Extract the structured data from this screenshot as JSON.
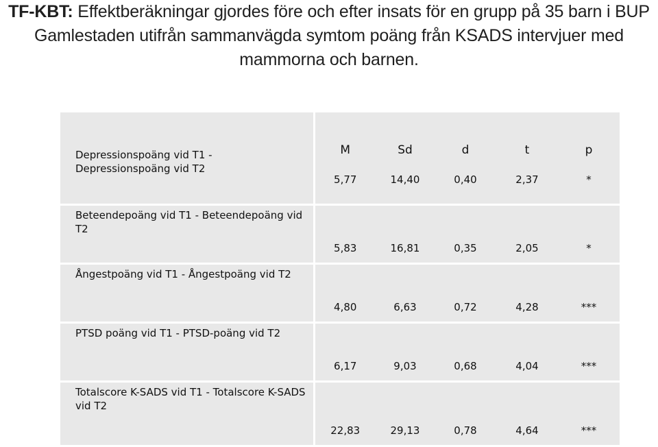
{
  "heading": {
    "lead": "TF-KBT:",
    "text": " Effektberäkningar gjordes före och efter insats för en grupp på 35 barn i BUP Gamlestaden utifrån sammanvägda symtom poäng från KSADS intervjuer med mammorna och barnen."
  },
  "table": {
    "headers": [
      "M",
      "Sd",
      "d",
      "t",
      "p"
    ],
    "rows": [
      {
        "label": "Depressionspoäng vid T1 - Depressionspoäng vid T2",
        "values": [
          "5,77",
          "14,40",
          "0,40",
          "2,37",
          "*"
        ]
      },
      {
        "label": "Beteendepoäng vid T1 - Beteendepoäng vid T2",
        "values": [
          "5,83",
          "16,81",
          "0,35",
          "2,05",
          "*"
        ]
      },
      {
        "label": "Ångestpoäng vid T1 - Ångestpoäng vid T2",
        "values": [
          "4,80",
          "6,63",
          "0,72",
          "4,28",
          "***"
        ]
      },
      {
        "label": "PTSD poäng vid T1 - PTSD-poäng vid T2",
        "values": [
          "6,17",
          "9,03",
          "0,68",
          "4,04",
          "***"
        ]
      },
      {
        "label": "Totalscore K-SADS vid T1 - Totalscore K-SADS vid T2",
        "values": [
          "22,83",
          "29,13",
          "0,78",
          "4,64",
          "***"
        ]
      }
    ]
  }
}
